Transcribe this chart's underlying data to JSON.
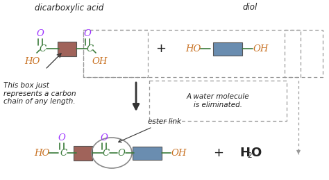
{
  "bg_color": "#ffffff",
  "title_dicarboxylic": "dicarboxylic acid",
  "title_diol": "diol",
  "label_ester": "ester link",
  "label_box": "This box just\nrepresents a carbon\nchain of any length.",
  "label_water_elim": "A water molecule\nis eliminated.",
  "color_O": "#9b30ff",
  "color_HO": "#c87020",
  "color_C": "#3a7a3a",
  "color_line": "#3a7a3a",
  "color_brown_box": "#a0635a",
  "color_blue_box": "#6a8db0",
  "color_text": "#222222",
  "color_arrow": "#333333",
  "color_dashed": "#999999",
  "color_ellipse": "#888888"
}
